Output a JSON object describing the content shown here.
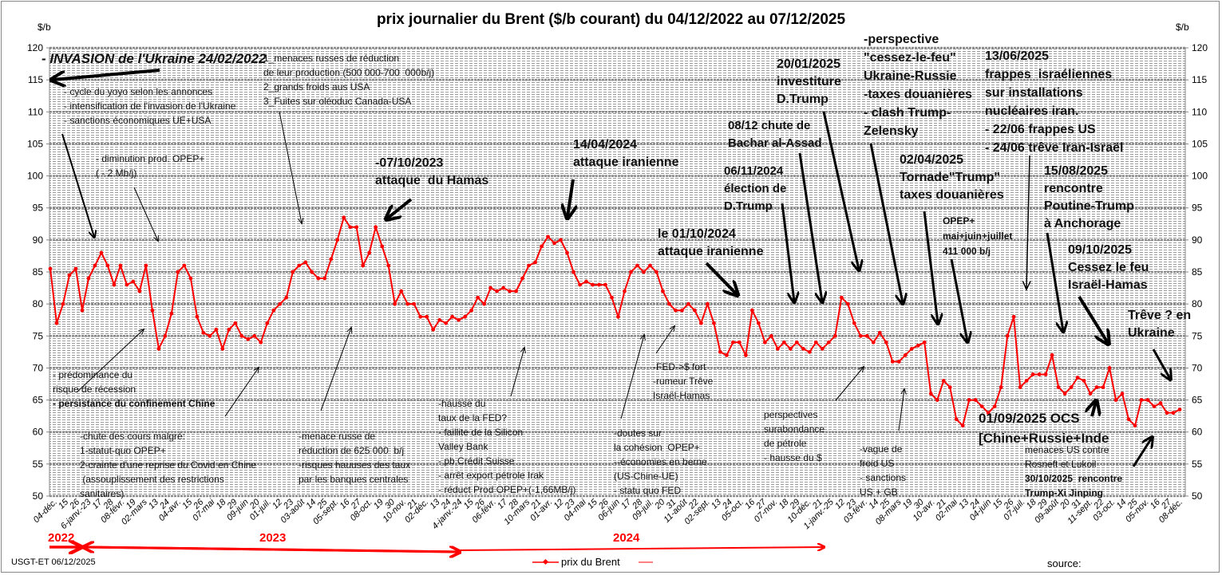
{
  "title": "prix  journalier du  Brent ($/b courant) du 04/12/2022 au  07/12/2025",
  "unit_left": "$/b",
  "unit_right": "$/b",
  "footer": {
    "author": "USGT-ET  06/12/2025",
    "source": "source:",
    "legend": "prix du Brent"
  },
  "years": [
    "2022",
    "2023",
    "2024"
  ],
  "colors": {
    "series": "#ff0000",
    "arrow": "#000000",
    "grid": "#999999"
  },
  "annotations": {
    "invasion": [
      "- INVASION de l'Ukraine 24/02/2022"
    ],
    "menaces": [
      "1_menaces russes de réduction",
      "de leur production (500 000-700  000b/j)",
      "2_grands froids aus USA",
      "3_Fuites sur oléoduc Canada-USA"
    ],
    "yoyo": [
      "- cycle du yoyo selon les annonces",
      "- intensification de l'invasion de l'Ukraine",
      "- sanctions économiques UE+USA"
    ],
    "opep2": [
      "- diminution prod. OPEP+",
      "( - 2 Mb/j)"
    ],
    "hamas": [
      "-07/10/2023",
      "attaque  du Hamas"
    ],
    "iran1": [
      "14/04/2024",
      "attaque iranienne"
    ],
    "investiture": [
      "20/01/2025",
      "investiture",
      "D.Trump"
    ],
    "perspective": [
      "-perspective",
      "\"cessez-le-feu\"",
      "Ukraine-Russie",
      "-taxes douanières",
      "- clash Trump-",
      "Zelensky"
    ],
    "frappes": [
      "13/06/2025",
      "frappes  israéliennes",
      "sur installations",
      "nucléaires iran.",
      "- 22/06 frappes US",
      "- 24/06 trêve Iran-Israël"
    ],
    "assad": [
      "08/12 chute de",
      "Bachar al-Assad"
    ],
    "election": [
      "06/11/2024",
      "élection de",
      "D.Trump"
    ],
    "iran2": [
      "le 01/10/2024",
      "attaque iranienne"
    ],
    "tornade": [
      "02/04/2025",
      "Tornade\"Trump\"",
      "taxes douanières"
    ],
    "opep411": [
      "OPEP+",
      "mai+juin+juillet",
      "411 000 b/j"
    ],
    "anchorage": [
      "15/08/2025",
      "rencontre",
      "Poutine-Trump",
      "à Anchorage"
    ],
    "cessez": [
      "09/10/2025",
      "Cessez le feu",
      "Israël-Hamas"
    ],
    "treve": [
      "Trêve ? en",
      "Ukraine"
    ],
    "recession": [
      "- prédominance du",
      "risque de récession",
      "- persistance du confinement Chine"
    ],
    "chute": [
      "-chute des cours malgré:",
      "1-statut-quo OPEP+",
      "2-crainte d'une reprise du Covid en Chine",
      " (assouplissement des restrictions",
      "sanitaires)"
    ],
    "menace625": [
      "-menace russe de",
      "réduction de 625 000  b/j",
      "-risques hauuses des taux",
      "par les banques centrales"
    ],
    "fed": [
      "-hausse du",
      "taux de la FED?",
      "- faillite de la Silicon",
      "Valley Bank",
      "- pb Crédit Suisse",
      "- arrêt export pétrole Irak",
      "- réduct Prod OPEP+(-1,66MB/j)"
    ],
    "fedfort": [
      "-FED->$ fort",
      "-rumeur Trêve",
      "Israël-Hamas"
    ],
    "doutes": [
      "-doutes sur",
      "la cohésion  OPEP+",
      "--économies en berne",
      "(US-Chine-UE)",
      "- statu quo FED"
    ],
    "surabondance": [
      "perspectives",
      "surabondance",
      "de pétrole",
      "- hausse du $"
    ],
    "froid": [
      "-vague de",
      "froid US",
      "- sanctions",
      "US + GB"
    ],
    "ocs": [
      "01/09/2025 OCS",
      "[Chine+Russie+Inde"
    ],
    "rosneft": [
      "menaces US contre",
      "Rosneft et Lukoil",
      "30/10/2025  rencontre",
      "Trump-Xi Jinping"
    ]
  },
  "chart_data": {
    "type": "line",
    "title": "prix  journalier du  Brent ($/b courant) du 04/12/2022 au  07/12/2025",
    "ylabel": "$/b",
    "ylim": [
      50,
      120
    ],
    "yticks": [
      50,
      55,
      60,
      65,
      70,
      75,
      80,
      85,
      90,
      95,
      100,
      105,
      110,
      115,
      120
    ],
    "grid": true,
    "legend": "bottom-center",
    "series": [
      {
        "name": "prix du Brent",
        "start": "04/12/2022",
        "end": "07/12/2025",
        "sampling": "approx. weekly",
        "values": [
          85.5,
          77,
          80,
          84.5,
          85.5,
          79,
          84,
          86,
          88,
          86,
          83,
          86,
          83,
          83.5,
          82,
          86,
          79,
          73,
          75,
          78.5,
          85,
          86,
          84,
          78,
          75.5,
          75,
          76,
          73,
          76,
          77,
          75,
          74.5,
          75,
          74,
          77,
          79,
          80,
          81,
          85,
          86,
          86.5,
          85,
          84,
          84,
          87,
          90,
          93.5,
          92,
          92,
          86,
          88,
          92,
          89,
          86,
          80,
          82,
          80,
          80,
          78,
          78,
          76,
          77.5,
          77,
          78,
          77.5,
          78,
          79,
          81,
          80,
          82.5,
          82,
          82.5,
          82,
          82,
          84,
          86,
          86.5,
          89,
          90.5,
          89.5,
          90,
          88,
          85,
          83,
          83.5,
          83,
          83,
          83,
          81,
          78,
          82,
          85,
          86,
          85,
          86,
          85,
          82,
          80,
          79,
          79,
          80,
          79,
          77,
          80,
          77,
          72.5,
          72,
          74,
          74,
          72,
          79,
          77,
          74,
          75,
          73,
          74,
          73,
          74,
          73,
          72.5,
          74,
          73,
          74,
          75,
          81,
          80,
          77,
          75,
          75,
          74,
          75.5,
          74,
          71,
          71,
          72,
          73,
          73.5,
          74,
          66,
          65,
          68,
          67,
          62,
          61,
          65,
          65,
          64,
          63,
          64,
          67,
          75,
          78,
          67,
          68,
          69,
          69,
          69,
          72,
          67,
          66,
          67,
          68.5,
          68,
          66,
          67,
          67,
          70,
          65,
          66,
          62,
          61,
          65,
          65,
          64,
          64.5,
          63,
          63,
          63.5
        ]
      }
    ],
    "xticks": [
      "04-déc.",
      "15",
      "26",
      "6-janv.-23",
      "17",
      "28",
      "08-févr.",
      "19",
      "02-mars",
      "13",
      "24",
      "04-avr.",
      "15",
      "26",
      "07-mai",
      "18",
      "29",
      "09-juin",
      "20",
      "01-juil.",
      "12",
      "23",
      "03-août",
      "14",
      "25",
      "05-sept.",
      "16",
      "27",
      "08-oct.",
      "19",
      "30",
      "10-nov.",
      "21",
      "02-déc.",
      "13",
      "24",
      "4-janv.-24",
      "15",
      "26",
      "06-févr.",
      "17",
      "28",
      "10-mars",
      "21",
      "01-avr.",
      "12",
      "23",
      "04-mai",
      "15",
      "26",
      "06-juin",
      "17",
      "28",
      "09-juil.",
      "20",
      "31",
      "11-août",
      "22",
      "02-sept.",
      "13",
      "24",
      "05-oct.",
      "16",
      "27",
      "07-nov.",
      "18",
      "29",
      "10-déc.",
      "21",
      "1-janv.-25",
      "12",
      "23",
      "03-févr.",
      "14",
      "25",
      "08-mars",
      "19",
      "30",
      "10-avr.",
      "21",
      "02-mai",
      "13",
      "24",
      "04-juin",
      "15",
      "26",
      "07-juil.",
      "18",
      "29",
      "09-août",
      "20",
      "31",
      "11-sept.",
      "22",
      "03-oct.",
      "14",
      "25",
      "05-nov.",
      "16",
      "27",
      "08-déc."
    ]
  }
}
